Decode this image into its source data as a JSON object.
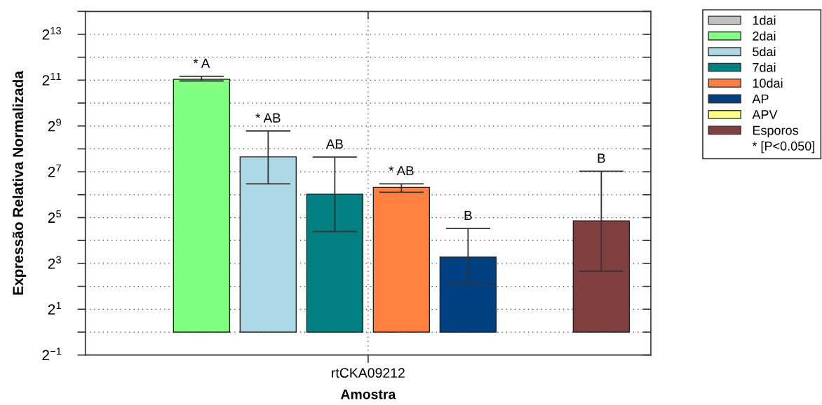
{
  "chart_data": {
    "type": "bar",
    "xlabel": "Amostra",
    "ylabel": "Expressão Relativa Normalizada",
    "categories": [
      "rtCKA09212"
    ],
    "series": [
      {
        "name": "1dai",
        "color": "#c0c0c0",
        "values": [
          null
        ]
      },
      {
        "name": "2dai",
        "color": "#80ff80",
        "values": [
          2100
        ],
        "base": [
          1
        ],
        "errors": [
          [
            2000,
            2300
          ]
        ]
      },
      {
        "name": "5dai",
        "color": "#add8e6",
        "values": [
          200
        ],
        "base": [
          1
        ],
        "errors": [
          [
            89,
            440
          ]
        ]
      },
      {
        "name": "7dai",
        "color": "#008080",
        "values": [
          64
        ],
        "base": [
          1
        ],
        "errors": [
          [
            21,
            200
          ]
        ]
      },
      {
        "name": "10dai",
        "color": "#ff8040",
        "values": [
          79
        ],
        "base": [
          1
        ],
        "errors": [
          [
            69,
            89
          ]
        ]
      },
      {
        "name": "AP",
        "color": "#004080",
        "values": [
          8.7
        ],
        "base": [
          1
        ],
        "errors": [
          [
            4.3,
            23
          ]
        ]
      },
      {
        "name": "APV",
        "color": "#ffff80",
        "values": [
          null
        ]
      },
      {
        "name": "Esporos",
        "color": "#804040",
        "values": [
          28
        ],
        "base": [
          1
        ],
        "errors": [
          [
            6.3,
            130
          ]
        ]
      }
    ],
    "log": "y",
    "ylim": [
      0.5,
      16384
    ],
    "yticks": [
      {
        "value": 0.5,
        "label": "2$^{−1}$"
      },
      {
        "value": 1,
        "label": null
      },
      {
        "value": 2,
        "label": "2$^{1}$"
      },
      {
        "value": 4,
        "label": null
      },
      {
        "value": 8,
        "label": "2$^{3}$"
      },
      {
        "value": 16,
        "label": null
      },
      {
        "value": 32,
        "label": "2$^{5}$"
      },
      {
        "value": 64,
        "label": null
      },
      {
        "value": 128,
        "label": "2$^{7}$"
      },
      {
        "value": 256,
        "label": null
      },
      {
        "value": 512,
        "label": "2$^{9}$"
      },
      {
        "value": 1024,
        "label": null
      },
      {
        "value": 2048,
        "label": "2$^{11}$"
      },
      {
        "value": 4096,
        "label": null
      },
      {
        "value": 8192,
        "label": "2$^{13}$"
      },
      {
        "value": 16384,
        "label": null
      }
    ],
    "grid": true,
    "legend": "top right",
    "annotations": [
      "* A",
      "* AB",
      "AB",
      "* AB",
      "B",
      "B",
      "* [P<0.050]"
    ]
  }
}
